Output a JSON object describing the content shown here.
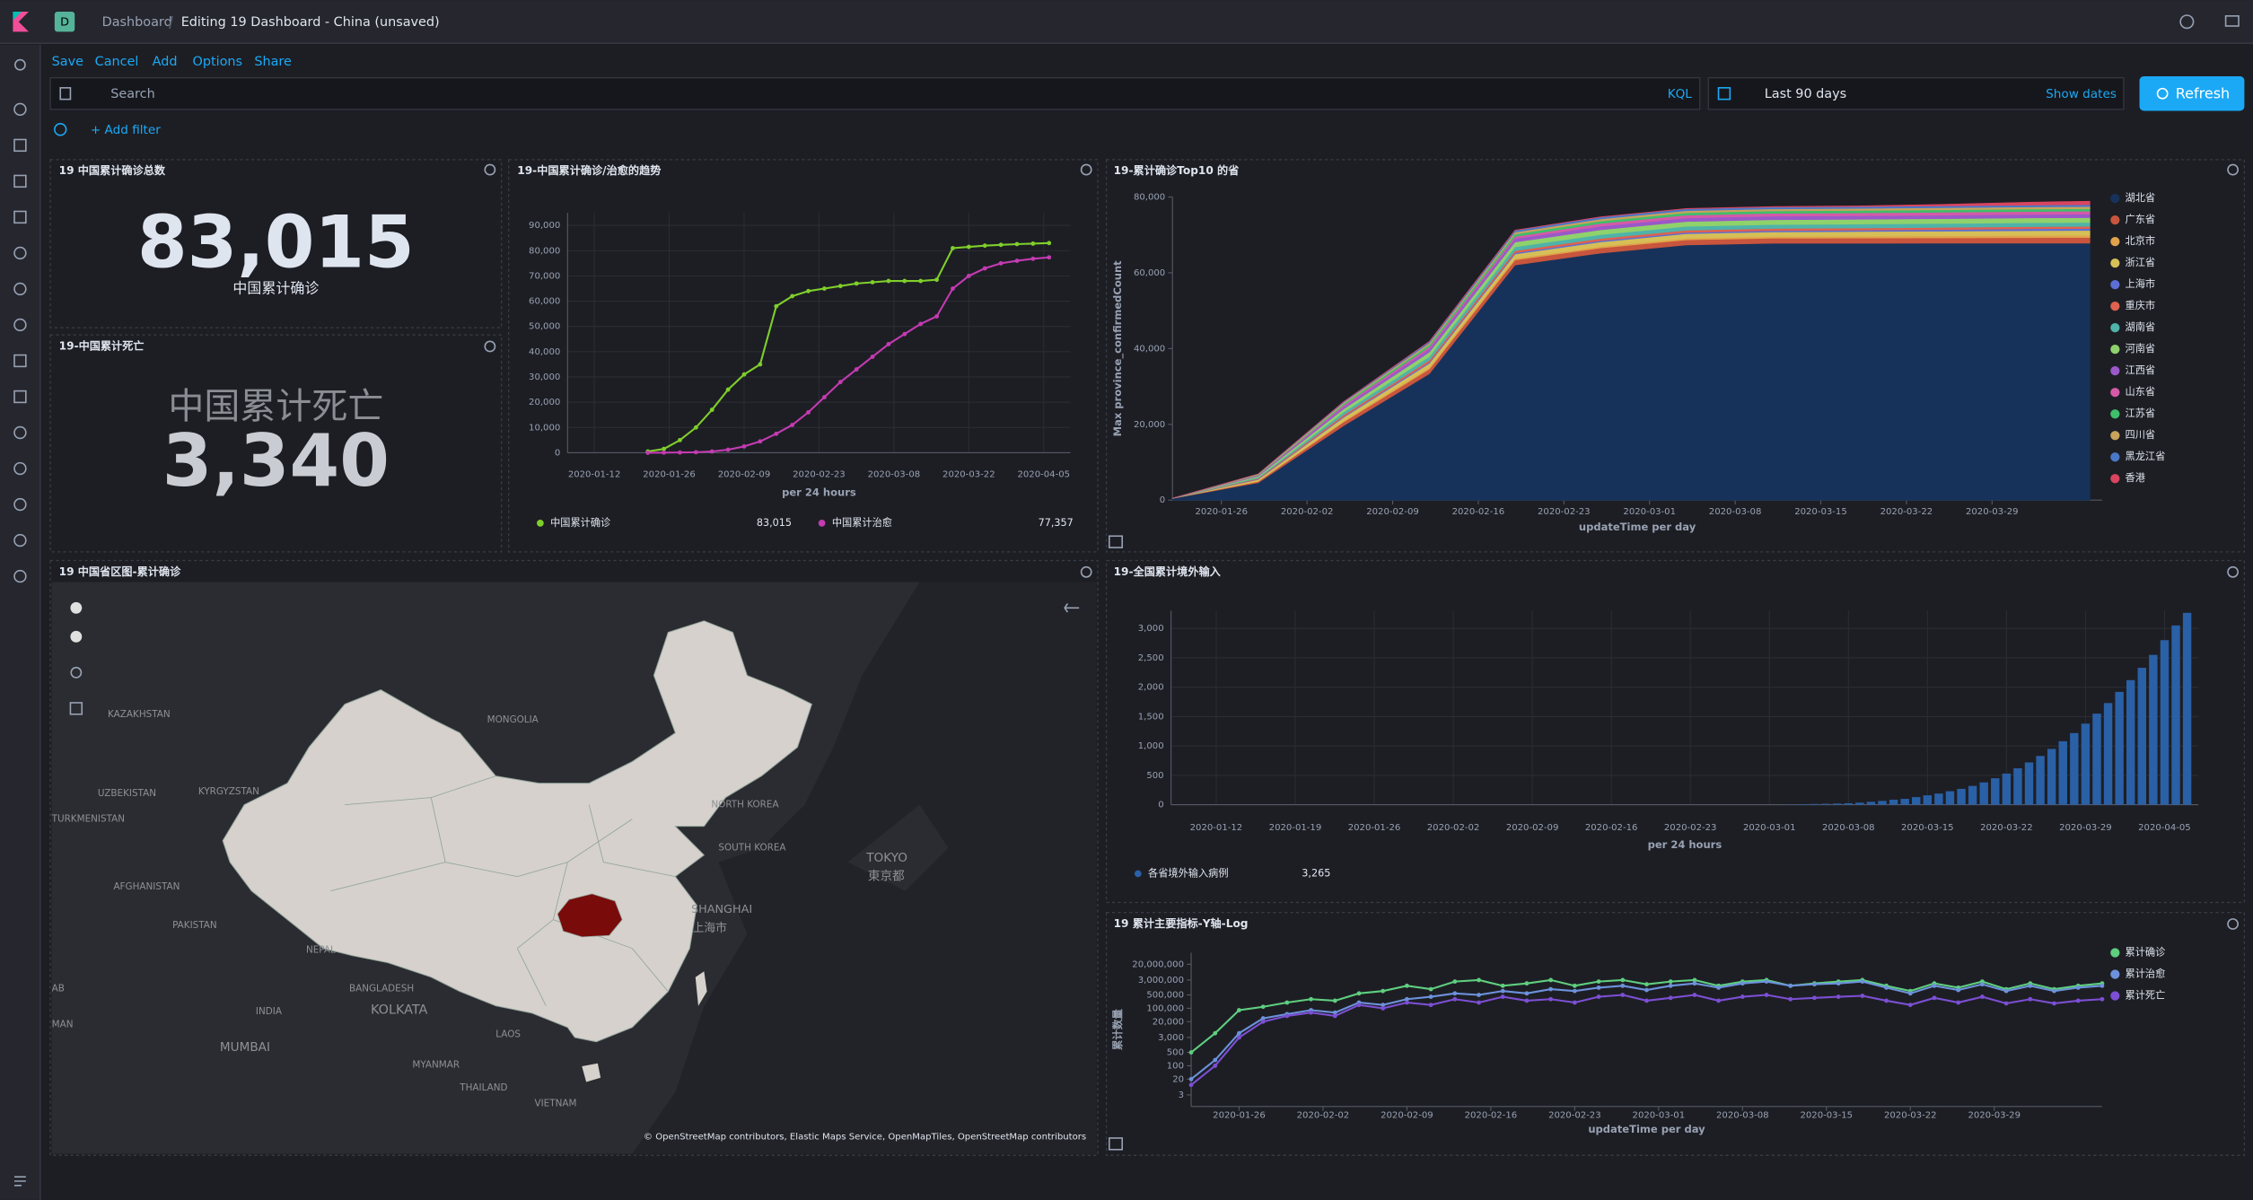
{
  "header": {
    "space_badge": "D",
    "breadcrumb_root": "Dashboard",
    "breadcrumb_current": "Editing 19 Dashboard - China (unsaved)"
  },
  "top_menu": [
    "Save",
    "Cancel",
    "Add",
    "Options",
    "Share"
  ],
  "query_bar": {
    "placeholder": "Search",
    "language": "KQL",
    "time_range": "Last 90 days",
    "show_dates": "Show dates",
    "refresh": "Refresh"
  },
  "filter_bar": {
    "add_filter": "+ Add filter"
  },
  "metric_panels": [
    {
      "title": "19 中国累计确诊总数",
      "value": "83,015",
      "label": "中国累计确诊"
    },
    {
      "title": "19-中国累计死亡",
      "label": "中国累计死亡",
      "value": "3,340"
    }
  ],
  "map_panel": {
    "title": "19 中国省区图-累计确诊",
    "labels": [
      "KAZAKHSTAN",
      "MONGOLIA",
      "KYRGYZSTAN",
      "UZBEKISTAN",
      "TURKMENISTAN",
      "AFGHANISTAN",
      "PAKISTAN",
      "NEPAL",
      "INDIA",
      "BANGLADESH",
      "KOLKATA",
      "MUMBAI",
      "MYANMAR",
      "THAILAND",
      "LAOS",
      "VIETNAM",
      "NORTH KOREA",
      "SOUTH KOREA",
      "TOKYO",
      "東京都",
      "SHANGHAI",
      "上海市",
      "AB",
      "MAN"
    ],
    "attribution": "© OpenStreetMap contributors, Elastic Maps Service, OpenMapTiles, OpenStreetMap contributors"
  },
  "chart_data": [
    {
      "type": "line",
      "title": "19-中国累计确诊/治愈的趋势",
      "x_label": "per 24 hours",
      "legend": "bottom",
      "grid": true,
      "markers": true,
      "x": [
        "2020-01-22",
        "2020-01-25",
        "2020-01-28",
        "2020-01-31",
        "2020-02-03",
        "2020-02-06",
        "2020-02-09",
        "2020-02-12",
        "2020-02-15",
        "2020-02-18",
        "2020-02-21",
        "2020-02-24",
        "2020-02-27",
        "2020-03-01",
        "2020-03-04",
        "2020-03-07",
        "2020-03-10",
        "2020-03-13",
        "2020-03-16",
        "2020-03-19",
        "2020-03-22",
        "2020-03-25",
        "2020-03-28",
        "2020-03-31",
        "2020-04-03",
        "2020-04-06"
      ],
      "series": [
        {
          "name": "中国累计确诊",
          "color": "#7fcf2b",
          "legend_value": "83,015",
          "values": [
            500,
            1500,
            5000,
            10000,
            17000,
            25000,
            31000,
            35000,
            58000,
            62000,
            64000,
            65000,
            66000,
            67000,
            67500,
            68000,
            68000,
            68000,
            68500,
            81000,
            81500,
            82000,
            82300,
            82600,
            82800,
            83015
          ]
        },
        {
          "name": "中国累计治愈",
          "color": "#c43bb2",
          "legend_value": "77,357",
          "values": [
            0,
            50,
            100,
            200,
            500,
            1200,
            2500,
            4500,
            7500,
            11000,
            16000,
            22000,
            28000,
            33000,
            38000,
            43000,
            47000,
            51000,
            54000,
            65000,
            70000,
            73000,
            75000,
            76000,
            76800,
            77357
          ]
        }
      ],
      "xlim": [
        "2020-01-07",
        "2020-04-10"
      ],
      "xticks": [
        "2020-01-12",
        "2020-01-26",
        "2020-02-09",
        "2020-02-23",
        "2020-03-08",
        "2020-03-22",
        "2020-04-05"
      ],
      "ylim": [
        0,
        95000
      ],
      "yticks": [
        0,
        {
          "value": 10000,
          "label": "10,000"
        },
        {
          "value": 20000,
          "label": "20,000"
        },
        {
          "value": 30000,
          "label": "30,000"
        },
        {
          "value": 40000,
          "label": "40,000"
        },
        {
          "value": 50000,
          "label": "50,000"
        },
        {
          "value": 60000,
          "label": "60,000"
        },
        {
          "value": 70000,
          "label": "70,000"
        },
        {
          "value": 80000,
          "label": "80,000"
        },
        {
          "value": 90000,
          "label": "90,000"
        }
      ]
    },
    {
      "type": "area",
      "stacked": true,
      "title": "19-累计确诊Top10 的省",
      "x_label": "updateTime per day",
      "y_label": "Max province_confirmedCount",
      "legend": "right",
      "grid": false,
      "x": [
        "2020-01-22",
        "2020-01-29",
        "2020-02-05",
        "2020-02-12",
        "2020-02-19",
        "2020-02-26",
        "2020-03-04",
        "2020-03-11",
        "2020-03-18",
        "2020-03-25",
        "2020-04-01",
        "2020-04-06"
      ],
      "series": [
        {
          "name": "湖北省",
          "color": "#17325a",
          "values": [
            444,
            4586,
            19665,
            33366,
            62031,
            65187,
            67332,
            67773,
            67800,
            67801,
            67802,
            67803
          ]
        },
        {
          "name": "广东省",
          "color": "#c8553d",
          "values": [
            26,
            311,
            970,
            1219,
            1331,
            1347,
            1351,
            1356,
            1364,
            1400,
            1467,
            1500
          ]
        },
        {
          "name": "北京市",
          "color": "#e0a24a",
          "values": [
            14,
            111,
            253,
            366,
            395,
            400,
            418,
            436,
            493,
            546,
            580,
            589
          ]
        },
        {
          "name": "浙江省",
          "color": "#d6bf57",
          "values": [
            5,
            428,
            954,
            1131,
            1171,
            1205,
            1215,
            1215,
            1232,
            1240,
            1251,
            1260
          ]
        },
        {
          "name": "上海市",
          "color": "#5b6fd6",
          "values": [
            16,
            101,
            254,
            313,
            333,
            337,
            339,
            344,
            358,
            414,
            493,
            520
          ]
        },
        {
          "name": "重庆市",
          "color": "#e0614f",
          "values": [
            5,
            206,
            428,
            537,
            567,
            576,
            576,
            576,
            576,
            578,
            579,
            579
          ]
        },
        {
          "name": "湖南省",
          "color": "#4fb3a9",
          "values": [
            4,
            277,
            711,
            968,
            1008,
            1016,
            1018,
            1018,
            1018,
            1018,
            1019,
            1019
          ]
        },
        {
          "name": "河南省",
          "color": "#8fd16b",
          "values": [
            5,
            278,
            851,
            1156,
            1262,
            1271,
            1272,
            1273,
            1273,
            1276,
            1276,
            1276
          ]
        },
        {
          "name": "江西省",
          "color": "#9a58c9",
          "values": [
            2,
            162,
            600,
            872,
            934,
            934,
            935,
            935,
            935,
            937,
            937,
            937
          ]
        },
        {
          "name": "山东省",
          "color": "#d45aa8",
          "values": [
            2,
            130,
            386,
            506,
            543,
            756,
            758,
            760,
            761,
            767,
            774,
            777
          ]
        },
        {
          "name": "江苏省",
          "color": "#3fbf6a",
          "values": [
            1,
            129,
            373,
            570,
            631,
            631,
            631,
            631,
            631,
            640,
            641,
            643
          ]
        },
        {
          "name": "四川省",
          "color": "#c9a35c",
          "values": [
            5,
            142,
            321,
            451,
            508,
            538,
            539,
            539,
            540,
            549,
            557,
            560
          ]
        },
        {
          "name": "黑龙江省",
          "color": "#4a78c8",
          "values": [
            0,
            37,
            227,
            395,
            464,
            480,
            481,
            482,
            482,
            484,
            484,
            505
          ]
        },
        {
          "name": "香港",
          "color": "#d9455f",
          "values": [
            0,
            10,
            21,
            50,
            65,
            91,
            105,
            129,
            192,
            410,
            765,
            914
          ]
        }
      ],
      "xlim": [
        "2020-01-22",
        "2020-04-07"
      ],
      "xticks": [
        "2020-01-26",
        "2020-02-02",
        "2020-02-09",
        "2020-02-16",
        "2020-02-23",
        "2020-03-01",
        "2020-03-08",
        "2020-03-15",
        "2020-03-22",
        "2020-03-29"
      ],
      "ylim": [
        0,
        80000
      ],
      "yticks": [
        0,
        {
          "value": 20000,
          "label": "20,000"
        },
        {
          "value": 40000,
          "label": "40,000"
        },
        {
          "value": 60000,
          "label": "60,000"
        },
        {
          "value": 80000,
          "label": "80,000"
        }
      ]
    },
    {
      "type": "bar",
      "title": "19-全国累计境外输入",
      "x_label": "per 24 hours",
      "legend": "bottom",
      "grid": true,
      "x": [
        "2020-03-03",
        "2020-03-04",
        "2020-03-05",
        "2020-03-06",
        "2020-03-07",
        "2020-03-08",
        "2020-03-09",
        "2020-03-10",
        "2020-03-11",
        "2020-03-12",
        "2020-03-13",
        "2020-03-14",
        "2020-03-15",
        "2020-03-16",
        "2020-03-17",
        "2020-03-18",
        "2020-03-19",
        "2020-03-20",
        "2020-03-21",
        "2020-03-22",
        "2020-03-23",
        "2020-03-24",
        "2020-03-25",
        "2020-03-26",
        "2020-03-27",
        "2020-03-28",
        "2020-03-29",
        "2020-03-30",
        "2020-03-31",
        "2020-04-01",
        "2020-04-02",
        "2020-04-03",
        "2020-04-04",
        "2020-04-05",
        "2020-04-06",
        "2020-04-07"
      ],
      "series": [
        {
          "name": "各省境外输入病例",
          "color": "#2a60a6",
          "legend_value": "3,265",
          "values": [
            5,
            8,
            12,
            16,
            20,
            25,
            35,
            50,
            65,
            85,
            100,
            130,
            160,
            190,
            230,
            270,
            320,
            380,
            450,
            530,
            620,
            720,
            830,
            950,
            1080,
            1220,
            1380,
            1550,
            1730,
            1920,
            2120,
            2330,
            2550,
            2800,
            3050,
            3265
          ]
        }
      ],
      "xlim": [
        "2020-01-08",
        "2020-04-08"
      ],
      "xticks": [
        "2020-01-12",
        "2020-01-19",
        "2020-01-26",
        "2020-02-02",
        "2020-02-09",
        "2020-02-16",
        "2020-02-23",
        "2020-03-01",
        "2020-03-08",
        "2020-03-15",
        "2020-03-22",
        "2020-03-29",
        "2020-04-05"
      ],
      "ylim": [
        0,
        3300
      ],
      "yticks": [
        0,
        500,
        {
          "value": 1000,
          "label": "1,000"
        },
        {
          "value": 1500,
          "label": "1,500"
        },
        {
          "value": 2000,
          "label": "2,000"
        },
        {
          "value": 2500,
          "label": "2,500"
        },
        {
          "value": 3000,
          "label": "3,000"
        }
      ]
    },
    {
      "type": "line",
      "yscale": "log",
      "title": "19 累计主要指标-Y轴-Log",
      "x_label": "updateTime per day",
      "y_label": "累计数量",
      "legend": "right",
      "grid": false,
      "markers": true,
      "x": [
        "2020-01-22",
        "2020-01-24",
        "2020-01-26",
        "2020-01-28",
        "2020-01-30",
        "2020-02-01",
        "2020-02-03",
        "2020-02-05",
        "2020-02-07",
        "2020-02-09",
        "2020-02-11",
        "2020-02-13",
        "2020-02-15",
        "2020-02-17",
        "2020-02-19",
        "2020-02-21",
        "2020-02-23",
        "2020-02-25",
        "2020-02-27",
        "2020-02-29",
        "2020-03-02",
        "2020-03-04",
        "2020-03-06",
        "2020-03-08",
        "2020-03-10",
        "2020-03-12",
        "2020-03-14",
        "2020-03-16",
        "2020-03-18",
        "2020-03-20",
        "2020-03-22",
        "2020-03-24",
        "2020-03-26",
        "2020-03-28",
        "2020-03-30",
        "2020-04-01",
        "2020-04-03",
        "2020-04-05",
        "2020-04-07"
      ],
      "series": [
        {
          "name": "累计确诊",
          "color": "#5fcf7f",
          "values": [
            500,
            5000,
            80000,
            120000,
            200000,
            300000,
            250000,
            600000,
            800000,
            1500000,
            1000000,
            2500000,
            3000000,
            1500000,
            2000000,
            3000000,
            1500000,
            2500000,
            3000000,
            1800000,
            2500000,
            3000000,
            1500000,
            2500000,
            3000000,
            1500000,
            2000000,
            2500000,
            3000000,
            1500000,
            800000,
            2000000,
            1200000,
            2500000,
            1000000,
            2000000,
            1000000,
            1500000,
            2000000
          ]
        },
        {
          "name": "累计治愈",
          "color": "#6d92dc",
          "values": [
            20,
            200,
            5000,
            30000,
            50000,
            80000,
            60000,
            200000,
            150000,
            300000,
            400000,
            600000,
            500000,
            800000,
            600000,
            1000000,
            800000,
            1200000,
            1500000,
            900000,
            1500000,
            2000000,
            1200000,
            2000000,
            2500000,
            1500000,
            1800000,
            2000000,
            2500000,
            1200000,
            600000,
            1500000,
            900000,
            1800000,
            800000,
            1500000,
            800000,
            1200000,
            1500000
          ]
        },
        {
          "name": "累计死亡",
          "color": "#7c4fd4",
          "values": [
            10,
            100,
            3000,
            20000,
            40000,
            60000,
            40000,
            150000,
            100000,
            200000,
            150000,
            300000,
            200000,
            400000,
            250000,
            300000,
            200000,
            400000,
            500000,
            250000,
            350000,
            500000,
            250000,
            400000,
            500000,
            300000,
            350000,
            400000,
            450000,
            250000,
            150000,
            350000,
            200000,
            400000,
            180000,
            300000,
            180000,
            250000,
            300000
          ]
        }
      ],
      "xlim": [
        "2020-01-22",
        "2020-04-07"
      ],
      "xticks": [
        "2020-01-26",
        "2020-02-02",
        "2020-02-09",
        "2020-02-16",
        "2020-02-23",
        "2020-03-01",
        "2020-03-08",
        "2020-03-15",
        "2020-03-22",
        "2020-03-29"
      ],
      "ylim": [
        0.75,
        80000000
      ],
      "yticks": [
        3,
        20,
        100,
        500,
        {
          "value": 3000,
          "label": "3,000"
        },
        {
          "value": 20000,
          "label": "20,000"
        },
        {
          "value": 100000,
          "label": "100,000"
        },
        {
          "value": 500000,
          "label": "500,000"
        },
        {
          "value": 3000000,
          "label": "3,000,000"
        },
        {
          "value": 20000000,
          "label": "20,000,000"
        }
      ]
    }
  ]
}
